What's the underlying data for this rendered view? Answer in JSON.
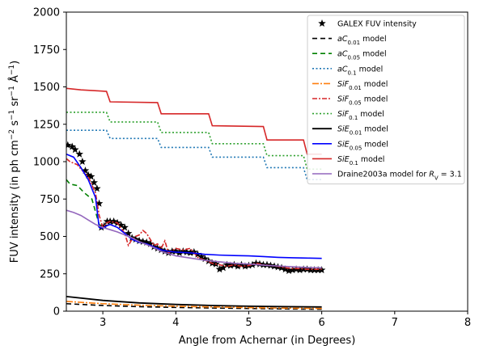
{
  "chart_data": {
    "type": "line",
    "xlabel": "Angle from Achernar (in Degrees)",
    "ylabel_parts": [
      "FUV intensity (in ph cm",
      "−2",
      " s",
      "−1",
      " sr",
      "−1",
      " Å",
      "−1",
      ")"
    ],
    "xlim": [
      2.5,
      8
    ],
    "ylim": [
      0,
      2000
    ],
    "x_ticks": [
      3,
      4,
      5,
      6,
      7,
      8
    ],
    "y_ticks": [
      0,
      250,
      500,
      750,
      1000,
      1250,
      1500,
      1750,
      2000
    ],
    "grid": false,
    "legend_position": "top-right",
    "series": [
      {
        "name": "GALEX FUV intensity",
        "legend_parts": [
          [
            "GALEX FUV intensity",
            ""
          ]
        ],
        "kind": "scatter",
        "color": "#000000",
        "points": [
          [
            2.52,
            1110
          ],
          [
            2.58,
            1100
          ],
          [
            2.62,
            1080
          ],
          [
            2.68,
            1050
          ],
          [
            2.72,
            1000
          ],
          [
            2.76,
            940
          ],
          [
            2.8,
            910
          ],
          [
            2.84,
            900
          ],
          [
            2.88,
            860
          ],
          [
            2.92,
            820
          ],
          [
            2.95,
            720
          ],
          [
            2.98,
            560
          ],
          [
            3.02,
            570
          ],
          [
            3.06,
            600
          ],
          [
            3.1,
            600
          ],
          [
            3.15,
            600
          ],
          [
            3.2,
            590
          ],
          [
            3.25,
            575
          ],
          [
            3.3,
            560
          ],
          [
            3.35,
            520
          ],
          [
            3.4,
            490
          ],
          [
            3.45,
            480
          ],
          [
            3.5,
            470
          ],
          [
            3.55,
            465
          ],
          [
            3.6,
            460
          ],
          [
            3.65,
            450
          ],
          [
            3.7,
            430
          ],
          [
            3.75,
            420
          ],
          [
            3.8,
            410
          ],
          [
            3.85,
            400
          ],
          [
            3.9,
            390
          ],
          [
            3.95,
            400
          ],
          [
            4.0,
            400
          ],
          [
            4.05,
            390
          ],
          [
            4.1,
            400
          ],
          [
            4.15,
            395
          ],
          [
            4.2,
            390
          ],
          [
            4.25,
            395
          ],
          [
            4.3,
            380
          ],
          [
            4.35,
            365
          ],
          [
            4.4,
            350
          ],
          [
            4.45,
            335
          ],
          [
            4.5,
            320
          ],
          [
            4.55,
            315
          ],
          [
            4.6,
            280
          ],
          [
            4.65,
            290
          ],
          [
            4.7,
            310
          ],
          [
            4.75,
            305
          ],
          [
            4.8,
            310
          ],
          [
            4.85,
            300
          ],
          [
            4.9,
            310
          ],
          [
            4.95,
            300
          ],
          [
            5.0,
            305
          ],
          [
            5.05,
            310
          ],
          [
            5.1,
            320
          ],
          [
            5.15,
            315
          ],
          [
            5.2,
            310
          ],
          [
            5.25,
            310
          ],
          [
            5.3,
            305
          ],
          [
            5.35,
            300
          ],
          [
            5.4,
            295
          ],
          [
            5.45,
            290
          ],
          [
            5.5,
            280
          ],
          [
            5.55,
            270
          ],
          [
            5.6,
            275
          ],
          [
            5.65,
            280
          ],
          [
            5.7,
            275
          ],
          [
            5.75,
            280
          ],
          [
            5.8,
            280
          ],
          [
            5.85,
            275
          ],
          [
            5.9,
            275
          ],
          [
            5.95,
            275
          ],
          [
            6.0,
            275
          ]
        ]
      },
      {
        "name": "aC0.01 model",
        "legend_parts": [
          [
            "aC",
            "it"
          ],
          [
            "0.01",
            "sub"
          ],
          [
            " model",
            ""
          ]
        ],
        "color": "#000000",
        "dash": "6,4",
        "width": 1.6,
        "points": [
          [
            2.5,
            50
          ],
          [
            3.0,
            38
          ],
          [
            3.5,
            30
          ],
          [
            4.0,
            25
          ],
          [
            4.5,
            21
          ],
          [
            5.0,
            18
          ],
          [
            5.5,
            15
          ],
          [
            6.0,
            13
          ]
        ]
      },
      {
        "name": "aC0.05 model",
        "legend_parts": [
          [
            "aC",
            "it"
          ],
          [
            "0.05",
            "sub"
          ],
          [
            " model",
            ""
          ]
        ],
        "color": "#008000",
        "dash": "6,4",
        "width": 1.6,
        "points": [
          [
            2.5,
            880
          ],
          [
            2.55,
            850
          ],
          [
            2.65,
            840
          ],
          [
            2.75,
            790
          ],
          [
            2.85,
            750
          ],
          [
            2.95,
            580
          ],
          [
            3.0,
            560
          ]
        ]
      },
      {
        "name": "aC0.1 model",
        "legend_parts": [
          [
            "aC",
            "it"
          ],
          [
            "0.1",
            "sub"
          ],
          [
            " model",
            ""
          ]
        ],
        "color": "#1f77b4",
        "dash": "2,2.5",
        "width": 1.6,
        "points": [
          [
            2.5,
            1210
          ],
          [
            3.05,
            1210
          ],
          [
            3.1,
            1155
          ],
          [
            3.75,
            1155
          ],
          [
            3.8,
            1095
          ],
          [
            4.45,
            1095
          ],
          [
            4.5,
            1030
          ],
          [
            5.2,
            1030
          ],
          [
            5.25,
            960
          ],
          [
            5.75,
            960
          ],
          [
            5.8,
            880
          ],
          [
            6.0,
            880
          ]
        ]
      },
      {
        "name": "SiF0.01 model",
        "legend_parts": [
          [
            "SiF",
            "it"
          ],
          [
            "0.01",
            "sub"
          ],
          [
            " model",
            ""
          ]
        ],
        "color": "#ff7f0e",
        "dash": "8,2,2,2",
        "width": 1.6,
        "points": [
          [
            2.5,
            65
          ],
          [
            3.0,
            50
          ],
          [
            3.5,
            40
          ],
          [
            4.0,
            33
          ],
          [
            4.5,
            28
          ],
          [
            5.0,
            24
          ],
          [
            5.5,
            20
          ],
          [
            6.0,
            18
          ]
        ]
      },
      {
        "name": "SiF0.05 model",
        "legend_parts": [
          [
            "SiF",
            "it"
          ],
          [
            "0.05",
            "sub"
          ],
          [
            " model",
            ""
          ]
        ],
        "color": "#d62728",
        "dash": "6,2,2,2",
        "width": 1.6,
        "points": [
          [
            2.5,
            1020
          ],
          [
            2.55,
            1000
          ],
          [
            2.65,
            980
          ],
          [
            2.7,
            950
          ],
          [
            2.8,
            900
          ],
          [
            2.9,
            790
          ],
          [
            2.95,
            640
          ],
          [
            3.0,
            560
          ],
          [
            3.05,
            590
          ],
          [
            3.1,
            600
          ],
          [
            3.2,
            590
          ],
          [
            3.3,
            520
          ],
          [
            3.35,
            440
          ],
          [
            3.4,
            480
          ],
          [
            3.45,
            500
          ],
          [
            3.5,
            510
          ],
          [
            3.55,
            540
          ],
          [
            3.6,
            520
          ],
          [
            3.65,
            480
          ],
          [
            3.7,
            440
          ],
          [
            3.75,
            450
          ],
          [
            3.8,
            420
          ],
          [
            3.85,
            470
          ],
          [
            3.9,
            390
          ],
          [
            4.0,
            420
          ],
          [
            4.1,
            410
          ],
          [
            4.2,
            420
          ],
          [
            4.3,
            360
          ],
          [
            4.4,
            340
          ],
          [
            4.5,
            320
          ],
          [
            4.6,
            310
          ],
          [
            4.7,
            300
          ],
          [
            4.8,
            310
          ],
          [
            4.9,
            300
          ],
          [
            5.0,
            305
          ],
          [
            5.1,
            320
          ],
          [
            5.2,
            310
          ],
          [
            5.3,
            305
          ],
          [
            5.4,
            300
          ],
          [
            5.5,
            290
          ],
          [
            5.6,
            285
          ],
          [
            5.7,
            285
          ],
          [
            5.8,
            280
          ],
          [
            5.9,
            280
          ],
          [
            6.0,
            280
          ]
        ]
      },
      {
        "name": "SiF0.1 model",
        "legend_parts": [
          [
            "SiF",
            "it"
          ],
          [
            "0.1",
            "sub"
          ],
          [
            " model",
            ""
          ]
        ],
        "color": "#2ca02c",
        "dash": "2,2.5",
        "width": 1.6,
        "points": [
          [
            2.5,
            1330
          ],
          [
            3.05,
            1330
          ],
          [
            3.1,
            1265
          ],
          [
            3.75,
            1265
          ],
          [
            3.8,
            1195
          ],
          [
            4.45,
            1195
          ],
          [
            4.5,
            1120
          ],
          [
            5.2,
            1120
          ],
          [
            5.25,
            1040
          ],
          [
            5.75,
            1040
          ],
          [
            5.8,
            950
          ],
          [
            6.0,
            950
          ]
        ]
      },
      {
        "name": "SiE0.01 model",
        "legend_parts": [
          [
            "SiE",
            "it"
          ],
          [
            "0.01",
            "sub"
          ],
          [
            " model",
            ""
          ]
        ],
        "color": "#000000",
        "dash": "",
        "width": 1.8,
        "points": [
          [
            2.5,
            98
          ],
          [
            3.0,
            72
          ],
          [
            3.5,
            55
          ],
          [
            4.0,
            45
          ],
          [
            4.5,
            38
          ],
          [
            5.0,
            33
          ],
          [
            5.5,
            30
          ],
          [
            6.0,
            28
          ]
        ]
      },
      {
        "name": "SiE0.05 model",
        "legend_parts": [
          [
            "SiE",
            "it"
          ],
          [
            "0.05",
            "sub"
          ],
          [
            " model",
            ""
          ]
        ],
        "color": "#0000ff",
        "dash": "",
        "width": 1.6,
        "points": [
          [
            2.5,
            1050
          ],
          [
            2.6,
            1030
          ],
          [
            2.7,
            960
          ],
          [
            2.8,
            880
          ],
          [
            2.9,
            760
          ],
          [
            2.95,
            560
          ],
          [
            3.0,
            555
          ],
          [
            3.05,
            570
          ],
          [
            3.1,
            580
          ],
          [
            3.2,
            560
          ],
          [
            3.3,
            520
          ],
          [
            3.4,
            480
          ],
          [
            3.5,
            460
          ],
          [
            3.6,
            450
          ],
          [
            3.7,
            430
          ],
          [
            3.8,
            410
          ],
          [
            3.9,
            400
          ],
          [
            4.0,
            395
          ],
          [
            4.2,
            390
          ],
          [
            4.4,
            380
          ],
          [
            4.6,
            375
          ],
          [
            4.8,
            372
          ],
          [
            5.0,
            370
          ],
          [
            5.2,
            365
          ],
          [
            5.4,
            360
          ],
          [
            5.6,
            357
          ],
          [
            5.8,
            355
          ],
          [
            6.0,
            353
          ]
        ]
      },
      {
        "name": "SiE0.1 model",
        "legend_parts": [
          [
            "SiE",
            "it"
          ],
          [
            "0.1",
            "sub"
          ],
          [
            " model",
            ""
          ]
        ],
        "color": "#d62728",
        "dash": "",
        "width": 1.6,
        "points": [
          [
            2.5,
            1490
          ],
          [
            2.7,
            1480
          ],
          [
            3.05,
            1470
          ],
          [
            3.1,
            1400
          ],
          [
            3.75,
            1395
          ],
          [
            3.8,
            1320
          ],
          [
            4.45,
            1320
          ],
          [
            4.5,
            1240
          ],
          [
            5.2,
            1235
          ],
          [
            5.25,
            1145
          ],
          [
            5.75,
            1145
          ],
          [
            5.8,
            1050
          ],
          [
            6.0,
            1050
          ]
        ]
      },
      {
        "name": "Draine2003a model for RV = 3.1",
        "legend_parts": [
          [
            "Draine2003a model for ",
            ""
          ],
          [
            "R",
            "it"
          ],
          [
            "V",
            "sub"
          ],
          [
            " = 3.1",
            ""
          ]
        ],
        "color": "#9467bd",
        "dash": "",
        "width": 1.6,
        "points": [
          [
            2.5,
            675
          ],
          [
            2.6,
            660
          ],
          [
            2.7,
            640
          ],
          [
            2.8,
            610
          ],
          [
            2.9,
            580
          ],
          [
            3.0,
            560
          ],
          [
            3.1,
            545
          ],
          [
            3.2,
            530
          ],
          [
            3.3,
            510
          ],
          [
            3.4,
            490
          ],
          [
            3.5,
            465
          ],
          [
            3.6,
            445
          ],
          [
            3.7,
            425
          ],
          [
            3.8,
            400
          ],
          [
            3.9,
            385
          ],
          [
            4.0,
            370
          ],
          [
            4.2,
            355
          ],
          [
            4.4,
            340
          ],
          [
            4.6,
            330
          ],
          [
            4.8,
            320
          ],
          [
            5.0,
            315
          ],
          [
            5.2,
            308
          ],
          [
            5.4,
            302
          ],
          [
            5.6,
            297
          ],
          [
            5.8,
            292
          ],
          [
            6.0,
            290
          ]
        ]
      }
    ]
  }
}
